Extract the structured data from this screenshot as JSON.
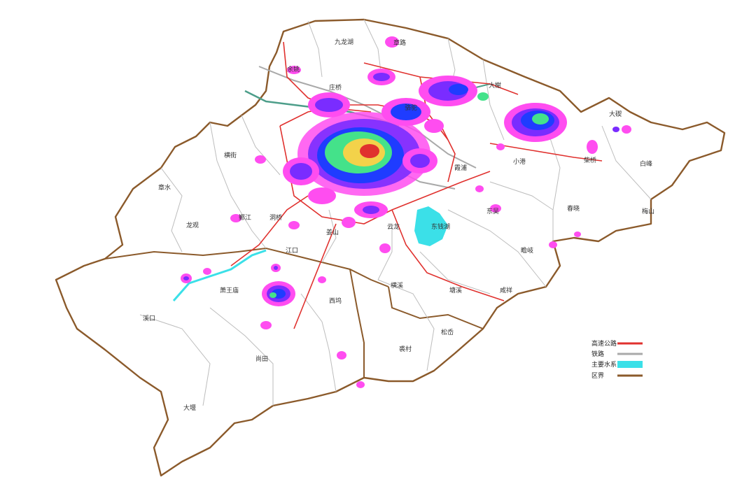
{
  "places": [
    {
      "id": "jiulonghu",
      "label": "九龙湖"
    },
    {
      "id": "zhanglu",
      "label": "章路"
    },
    {
      "id": "hengjie",
      "label": "横街"
    },
    {
      "id": "zhangshui",
      "label": "章水"
    },
    {
      "id": "longguan",
      "label": "龙观"
    },
    {
      "id": "yinjiang",
      "label": "鄞江"
    },
    {
      "id": "dongqiao",
      "label": "洞桥"
    },
    {
      "id": "jiangkou",
      "label": "江口"
    },
    {
      "id": "xiaowangmiao",
      "label": "萧王庙"
    },
    {
      "id": "xikou",
      "label": "溪口"
    },
    {
      "id": "shangtian",
      "label": "尚田"
    },
    {
      "id": "dayan",
      "label": "大堰"
    },
    {
      "id": "xiwu",
      "label": "西坞"
    },
    {
      "id": "qiucun",
      "label": "裘村"
    },
    {
      "id": "songao",
      "label": "松岙"
    },
    {
      "id": "dongwu",
      "label": "东吴"
    },
    {
      "id": "donghu",
      "label": "东钱湖"
    },
    {
      "id": "qiaoxia",
      "label": "瞻岐"
    },
    {
      "id": "huaxi",
      "label": "横溪"
    },
    {
      "id": "tangxi",
      "label": "塘溪"
    },
    {
      "id": "xianxiang",
      "label": "咸祥"
    },
    {
      "id": "chunhu",
      "label": "春晓"
    },
    {
      "id": "meishan",
      "label": "梅山"
    },
    {
      "id": "baifeng",
      "label": "白峰"
    },
    {
      "id": "daqi",
      "label": "大碶"
    },
    {
      "id": "xiaogang",
      "label": "小港"
    },
    {
      "id": "chaiqiao",
      "label": "柴桥"
    },
    {
      "id": "zhuangqiao",
      "label": "庄桥"
    },
    {
      "id": "yunlong",
      "label": "云龙"
    },
    {
      "id": "jiangshan",
      "label": "姜山"
    },
    {
      "id": "daxie",
      "label": "大榭"
    },
    {
      "id": "xiapu",
      "label": "霞浦"
    },
    {
      "id": "luotuo",
      "label": "骆驼"
    },
    {
      "id": "yuyao",
      "label": "余姚"
    }
  ],
  "legend": {
    "items": [
      {
        "label": "高速公路",
        "color": "#e0312e",
        "kind": "line"
      },
      {
        "label": "铁路",
        "color": "#a9a9a9",
        "kind": "line"
      },
      {
        "label": "主要水系",
        "color": "#3be0e8",
        "kind": "patch"
      },
      {
        "label": "区界",
        "color": "#8b5a2b",
        "kind": "line"
      }
    ]
  },
  "colors": {
    "boundary": "#8b5a2b",
    "subboundary": "#b5b5b5",
    "highway": "#e0312e",
    "railway": "#a9a9a9",
    "water": "#3be0e8",
    "heat_low": "#ff4df0",
    "heat_mid": "#7a2cff",
    "heat_high": "#1f3cff",
    "heat_peak": "#44e28a",
    "heat_core": "#f3d24a",
    "heat_hot": "#e0312e"
  }
}
